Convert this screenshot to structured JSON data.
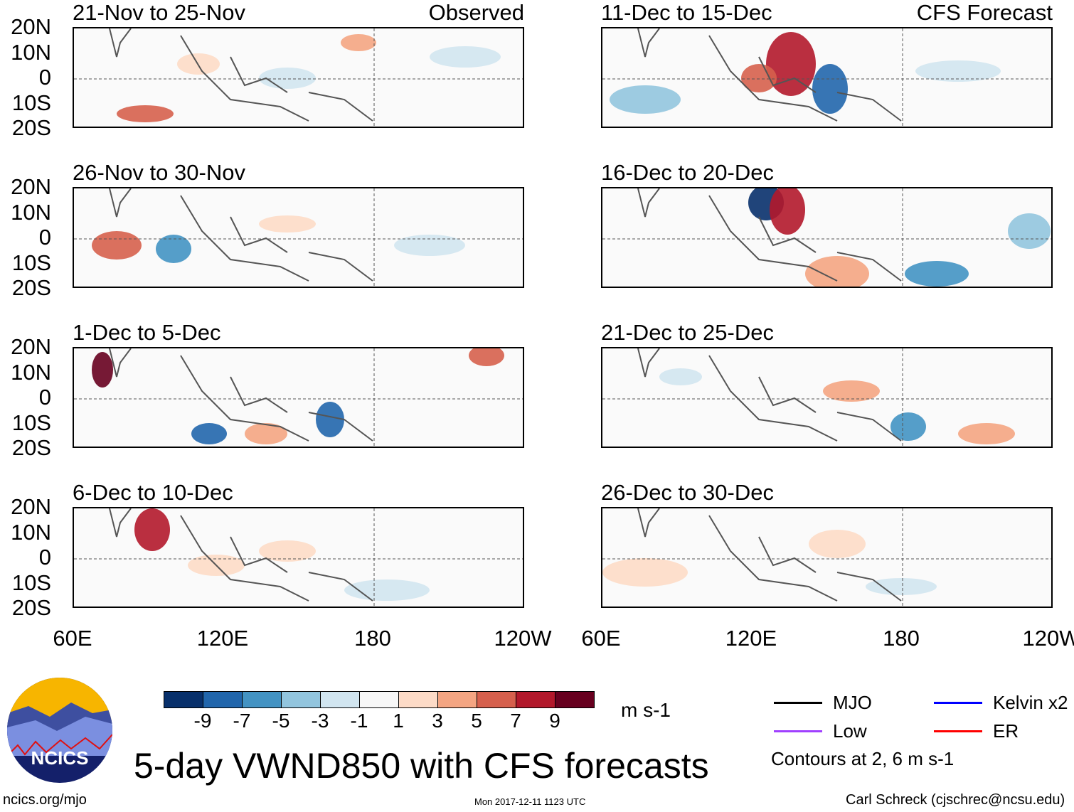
{
  "panels": [
    {
      "title": "21-Nov to 25-Nov",
      "tag": "Observed"
    },
    {
      "title": "11-Dec to 15-Dec",
      "tag": "CFS Forecast"
    },
    {
      "title": "26-Nov to 30-Nov"
    },
    {
      "title": "16-Dec to 20-Dec"
    },
    {
      "title": "1-Dec to 5-Dec"
    },
    {
      "title": "21-Dec to 25-Dec"
    },
    {
      "title": "6-Dec to 10-Dec"
    },
    {
      "title": "26-Dec to 30-Dec"
    }
  ],
  "lat_labels": [
    "20N",
    "10N",
    "0",
    "10S",
    "20S"
  ],
  "lon_labels": [
    "60E",
    "120E",
    "180",
    "120W"
  ],
  "colorbar": {
    "colors": [
      "#08306b",
      "#2166ac",
      "#4393c3",
      "#92c5de",
      "#d1e5f0",
      "#f7f7f7",
      "#fddbc7",
      "#f4a582",
      "#d6604d",
      "#b2182b",
      "#67001f"
    ],
    "labels": [
      "-9",
      "-7",
      "-5",
      "-3",
      "-1",
      "1",
      "3",
      "5",
      "7",
      "9"
    ],
    "units": "m s-1"
  },
  "legend": {
    "items": [
      {
        "label": "MJO",
        "color": "#000000"
      },
      {
        "label": "Kelvin x2",
        "color": "#0000ff"
      },
      {
        "label": "Low",
        "color": "#a040ff"
      },
      {
        "label": "ER",
        "color": "#ff0000"
      }
    ],
    "note": "Contours at 2, 6 m s-1"
  },
  "title": "5-day VWND850 with CFS forecasts",
  "logo_text": "NCICS",
  "footer": {
    "left": "ncics.org/mjo",
    "center": "Mon 2017-12-11 1123 UTC",
    "right": "Carl Schreck (cjschrec@ncsu.edu)"
  }
}
